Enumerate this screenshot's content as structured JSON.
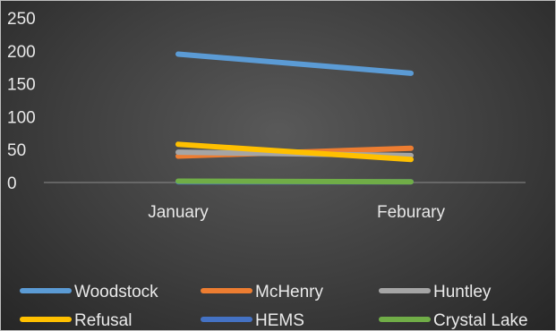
{
  "chart_data": {
    "type": "line",
    "categories": [
      "January",
      "Feburary"
    ],
    "ylim": [
      0,
      250
    ],
    "yticks": [
      0,
      50,
      100,
      150,
      200,
      250
    ],
    "grid": false,
    "legend_position": "bottom",
    "series": [
      {
        "name": "Woodstock",
        "values": [
          195,
          166
        ],
        "color": "#5b9bd5"
      },
      {
        "name": "McHenry",
        "values": [
          40,
          52
        ],
        "color": "#ed7d31"
      },
      {
        "name": "Huntley",
        "values": [
          46,
          41
        ],
        "color": "#a5a5a5"
      },
      {
        "name": "Refusal",
        "values": [
          58,
          35
        ],
        "color": "#ffc000"
      },
      {
        "name": "HEMS",
        "values": [
          1,
          1
        ],
        "color": "#4472c4"
      },
      {
        "name": "Crystal Lake",
        "values": [
          2,
          1
        ],
        "color": "#70ad47"
      }
    ]
  }
}
